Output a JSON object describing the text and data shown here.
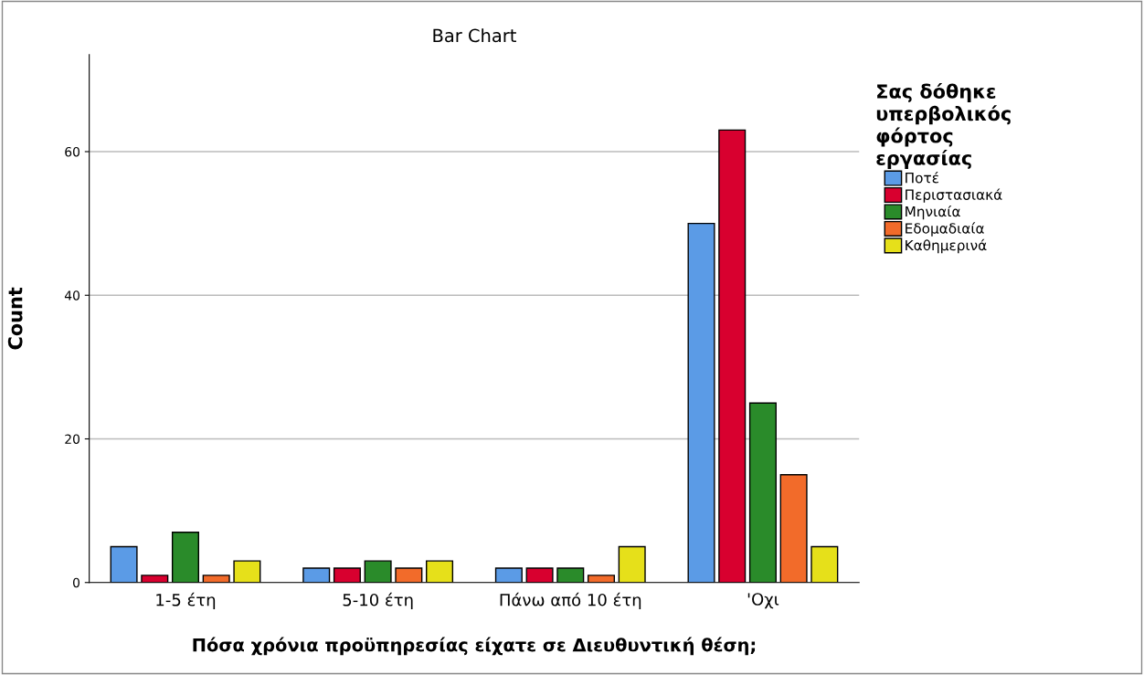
{
  "chart_data": {
    "type": "bar",
    "title": "Bar Chart",
    "xlabel": "Πόσα χρόνια προϋπηρεσίας είχατε σε Διευθυντική θέση;",
    "ylabel": "Count",
    "legend_title": "Σας δόθηκε\nυπερβολικός\nφόρτος\nεργασίας",
    "categories": [
      "1-5 έτη",
      "5-10 έτη",
      "Πάνω από 10 έτη",
      "'Οχι"
    ],
    "series": [
      {
        "name": "Ποτέ",
        "color": "#5b9be6",
        "values": [
          5,
          2,
          2,
          50
        ]
      },
      {
        "name": "Περιστασιακά",
        "color": "#d8002f",
        "values": [
          1,
          2,
          2,
          63
        ]
      },
      {
        "name": "Μηνιαία",
        "color": "#2a8b2a",
        "values": [
          7,
          3,
          2,
          25
        ]
      },
      {
        "name": "Εδομαδιαία",
        "color": "#f26b2a",
        "values": [
          1,
          2,
          1,
          15
        ]
      },
      {
        "name": "Καθημερινά",
        "color": "#e6e01a",
        "values": [
          3,
          3,
          5,
          5
        ]
      }
    ],
    "ylim": [
      0,
      73.5
    ],
    "yticks": [
      0,
      20,
      40,
      60
    ],
    "grid": "y",
    "legend": "right"
  }
}
